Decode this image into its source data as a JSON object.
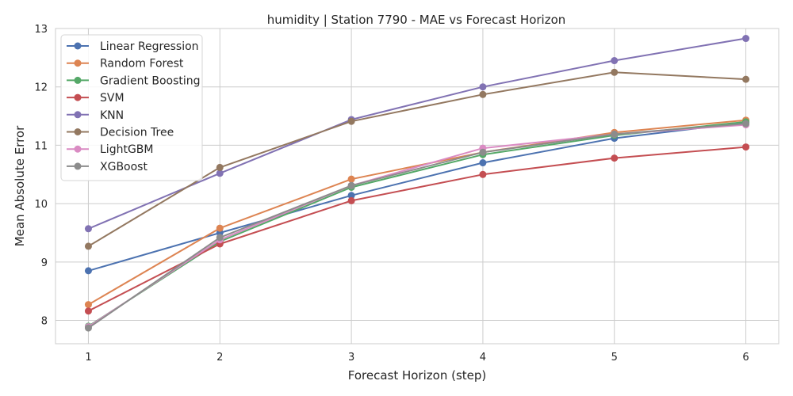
{
  "chart_data": {
    "type": "line",
    "title": "humidity | Station 7790 - MAE vs Forecast Horizon",
    "xlabel": "Forecast Horizon (step)",
    "ylabel": "Mean Absolute Error",
    "x": [
      1,
      2,
      3,
      4,
      5,
      6
    ],
    "xlim": [
      0.75,
      6.25
    ],
    "ylim": [
      7.6,
      13.0
    ],
    "x_ticks": [
      1,
      2,
      3,
      4,
      5,
      6
    ],
    "y_ticks": [
      8,
      9,
      10,
      11,
      12,
      13
    ],
    "grid": true,
    "legend_position": "top-left",
    "series": [
      {
        "name": "Linear Regression",
        "color": "#4c72b0",
        "values": [
          8.85,
          9.5,
          10.14,
          10.7,
          11.12,
          11.39
        ]
      },
      {
        "name": "Random Forest",
        "color": "#dd8452",
        "values": [
          8.27,
          9.58,
          10.42,
          10.88,
          11.22,
          11.43
        ]
      },
      {
        "name": "Gradient Boosting",
        "color": "#55a868",
        "values": [
          7.9,
          9.35,
          10.28,
          10.84,
          11.17,
          11.4
        ]
      },
      {
        "name": "SVM",
        "color": "#c44e52",
        "values": [
          8.16,
          9.31,
          10.05,
          10.5,
          10.78,
          10.97
        ]
      },
      {
        "name": "KNN",
        "color": "#8172b3",
        "values": [
          9.57,
          10.52,
          11.44,
          12.0,
          12.45,
          12.83
        ]
      },
      {
        "name": "Decision Tree",
        "color": "#937860",
        "values": [
          9.27,
          10.62,
          11.41,
          11.87,
          12.25,
          12.13
        ]
      },
      {
        "name": "LightGBM",
        "color": "#da8bc3",
        "values": [
          7.89,
          9.38,
          10.31,
          10.95,
          11.19,
          11.35
        ]
      },
      {
        "name": "XGBoost",
        "color": "#8c8c8c",
        "values": [
          7.87,
          9.42,
          10.31,
          10.88,
          11.19,
          11.37
        ]
      }
    ]
  }
}
